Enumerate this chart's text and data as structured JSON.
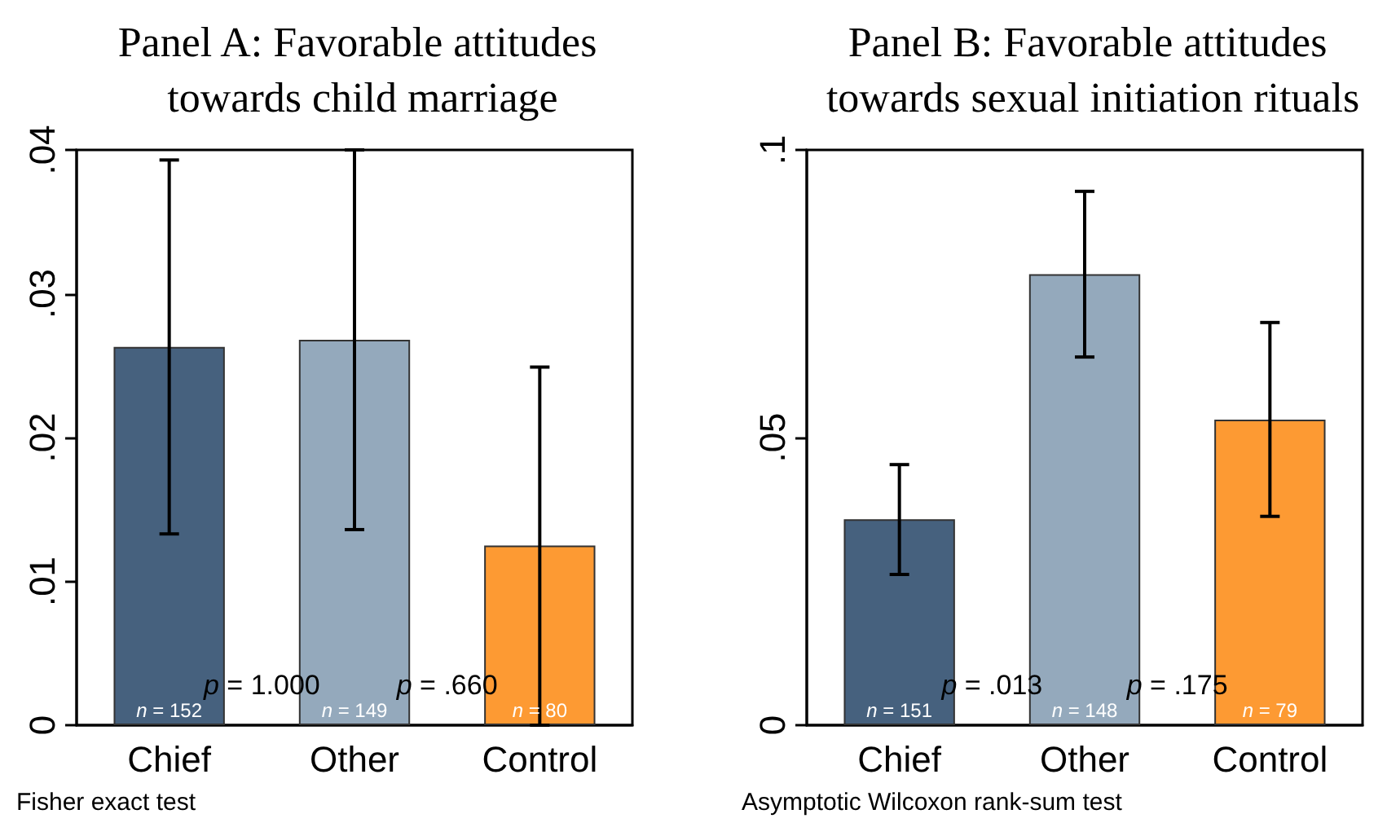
{
  "chart_data": [
    {
      "type": "bar",
      "title": "Panel A: Favorable attitudes towards child marriage",
      "categories": [
        "Chief",
        "Other",
        "Control"
      ],
      "values": [
        0.0263,
        0.0268,
        0.0125
      ],
      "colors": [
        "#46617e",
        "#94a9bc",
        "#fd9a33"
      ],
      "errors": [
        [
          0.0133,
          0.0393
        ],
        [
          0.0136,
          0.04
        ],
        [
          0,
          0.0249
        ]
      ],
      "ylim": [
        0,
        0.04
      ],
      "yticks": [
        0,
        {
          "value": 0.01,
          "label": ".01"
        },
        {
          "value": 0.02,
          "label": ".02"
        },
        {
          "value": 0.03,
          "label": ".03"
        },
        {
          "value": 0.04,
          "label": ".04"
        }
      ],
      "grid": false,
      "annotations": [
        {
          "text": "n = 152",
          "x": "Chief",
          "y": 0
        },
        {
          "text": "n = 149",
          "x": "Other",
          "y": 0
        },
        {
          "text": "n = 80",
          "x": "Control",
          "y": 0
        },
        "p = 1.000",
        "p = .660",
        "Fisher exact test"
      ]
    },
    {
      "type": "bar",
      "title": "Panel B: Favorable attitudes towards sexual initiation rituals",
      "categories": [
        "Chief",
        "Other",
        "Control"
      ],
      "values": [
        0.0358,
        0.0784,
        0.0531
      ],
      "colors": [
        "#46617e",
        "#94a9bc",
        "#fd9a33"
      ],
      "errors": [
        [
          0.0262,
          0.0453
        ],
        [
          0.064,
          0.0928
        ],
        [
          0.0363,
          0.07
        ]
      ],
      "ylim": [
        0,
        0.1
      ],
      "yticks": [
        0,
        {
          "value": 0.05,
          "label": ".05"
        },
        {
          "value": 0.1,
          "label": ".1"
        }
      ],
      "grid": false,
      "annotations": [
        {
          "text": "n = 151",
          "x": "Chief",
          "y": 0
        },
        {
          "text": "n = 148",
          "x": "Other",
          "y": 0
        },
        {
          "text": "n = 79",
          "x": "Control",
          "y": 0
        },
        "p = .013",
        "p = .175",
        "Asymptotic Wilcoxon rank-sum test"
      ]
    }
  ]
}
